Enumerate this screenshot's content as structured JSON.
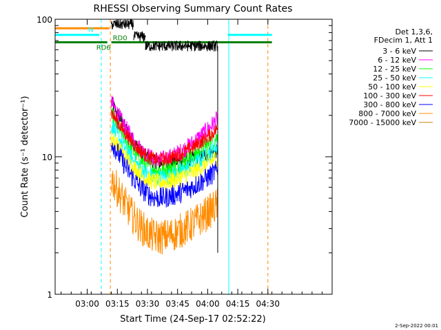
{
  "chart_data": {
    "type": "line",
    "title": "RHESSI Observing Summary Count Rates",
    "xlabel": "Start Time (24-Sep-17 02:52:22)",
    "ylabel": "Count Rate (s⁻¹ detector⁻¹)",
    "yscale": "log",
    "ylim": [
      1,
      100
    ],
    "xlim_min": [
      -8,
      130
    ],
    "x_ticks": [
      {
        "t": 8,
        "label": "03:00"
      },
      {
        "t": 23,
        "label": "03:15"
      },
      {
        "t": 38,
        "label": "03:30"
      },
      {
        "t": 53,
        "label": "03:45"
      },
      {
        "t": 68,
        "label": "04:00"
      },
      {
        "t": 83,
        "label": "04:15"
      },
      {
        "t": 98,
        "label": "04:30"
      }
    ],
    "y_ticks": [
      {
        "v": 1,
        "label": "1"
      },
      {
        "v": 10,
        "label": "10"
      },
      {
        "v": 100,
        "label": "100"
      }
    ],
    "legend": {
      "header": [
        "Det 1,3,6,",
        "FDecim 1, Att 1"
      ],
      "placement": "right"
    },
    "series": [
      {
        "name": "3 - 6 keV",
        "color": "#000000",
        "start_t": 20,
        "end_t": 73,
        "y_start": 25,
        "y_min": 9,
        "y_end": 11,
        "t_min": 45,
        "noise": 0.12
      },
      {
        "name": "6 - 12 keV",
        "color": "#ff00ff",
        "start_t": 20,
        "end_t": 73,
        "y_start": 25,
        "y_min": 9.5,
        "y_end": 19,
        "t_min": 44,
        "noise": 0.15
      },
      {
        "name": "12 - 25 keV",
        "color": "#00ff00",
        "start_t": 20,
        "end_t": 73,
        "y_start": 20,
        "y_min": 8,
        "y_end": 14,
        "t_min": 44,
        "noise": 0.15
      },
      {
        "name": "25 - 50 keV",
        "color": "#00ffff",
        "start_t": 20,
        "end_t": 73,
        "y_start": 17,
        "y_min": 7,
        "y_end": 12,
        "t_min": 44,
        "noise": 0.15
      },
      {
        "name": "50 - 100 keV",
        "color": "#ffff00",
        "start_t": 20,
        "end_t": 73,
        "y_start": 14,
        "y_min": 6.5,
        "y_end": 10,
        "t_min": 44,
        "noise": 0.15
      },
      {
        "name": "100 - 300 keV",
        "color": "#ff0000",
        "start_t": 20,
        "end_t": 73,
        "y_start": 21,
        "y_min": 9.5,
        "y_end": 16,
        "t_min": 44,
        "noise": 0.12
      },
      {
        "name": "300 - 800 keV",
        "color": "#0000ff",
        "start_t": 20,
        "end_t": 73,
        "y_start": 13,
        "y_min": 5,
        "y_end": 8,
        "t_min": 44,
        "noise": 0.18
      },
      {
        "name": "800 - 7000 keV",
        "color": "#ff8c00",
        "start_t": 20,
        "end_t": 73,
        "y_start": 7,
        "y_min": 2.6,
        "y_end": 4.5,
        "t_min": 44,
        "noise": 0.3
      },
      {
        "name": "7000 - 15000 keV",
        "color": "#b8860b",
        "start_t": 20,
        "end_t": 73,
        "y_start": 1,
        "y_min": 1,
        "y_end": 1,
        "t_min": 44,
        "noise": 0
      },
      {
        "name": "",
        "color": "#000000",
        "role": "upper-trace",
        "segments": [
          {
            "t0": 20,
            "t1": 31,
            "y": 92
          },
          {
            "t0": 31,
            "t1": 37,
            "y": 75
          },
          {
            "t0": 37,
            "t1": 73,
            "y": 64
          }
        ]
      }
    ],
    "state_bars": [
      {
        "label": "",
        "color": "#ff8c00",
        "t0": -8,
        "t1": 19,
        "y": 86
      },
      {
        "label": "N",
        "color": "#00ffff",
        "t0": -8,
        "t1": 14,
        "y": 77
      },
      {
        "label": "",
        "color": "#00ffff",
        "t0": 78,
        "t1": 100,
        "y": 77
      },
      {
        "label": "RD6",
        "color": "#008000",
        "t0": -8,
        "t1": 18,
        "y": 68
      },
      {
        "label": "RD0",
        "color": "#008000",
        "t0": 20,
        "t1": 100,
        "y": 68
      }
    ],
    "vertical_markers": [
      {
        "t": -8,
        "color": "#00ffff",
        "dash": false
      },
      {
        "t": 15,
        "color": "#00ffff",
        "dash": true
      },
      {
        "t": 19.5,
        "color": "#ff8c00",
        "dash": true
      },
      {
        "t": 78.5,
        "color": "#00ffff",
        "dash": false
      },
      {
        "t": 98,
        "color": "#ff8c00",
        "dash": true
      }
    ]
  },
  "footer": {
    "timestamp": "2-Sep-2022 00:01"
  }
}
